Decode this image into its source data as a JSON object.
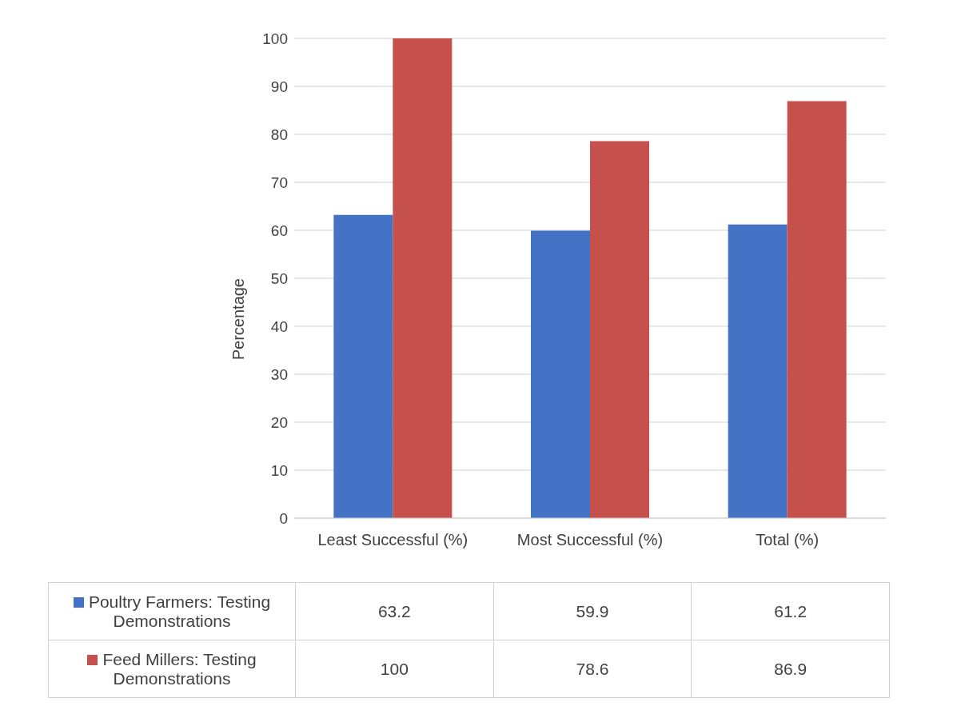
{
  "chart_data": {
    "type": "bar",
    "ylabel": "Percentage",
    "categories": [
      "Least Successful (%)",
      "Most Successful (%)",
      "Total (%)"
    ],
    "series": [
      {
        "name": "Poultry Farmers: Testing Demonstrations",
        "color": "#4472c4",
        "values": [
          63.2,
          59.9,
          61.2
        ]
      },
      {
        "name": "Feed Millers: Testing Demonstrations",
        "color": "#c5504c",
        "values": [
          100,
          78.6,
          86.9
        ]
      }
    ],
    "ylim": [
      0,
      100
    ],
    "yticks": [
      0,
      10,
      20,
      30,
      40,
      50,
      60,
      70,
      80,
      90,
      100
    ],
    "grid": "y",
    "legend": "bottom",
    "data_labels": true
  }
}
